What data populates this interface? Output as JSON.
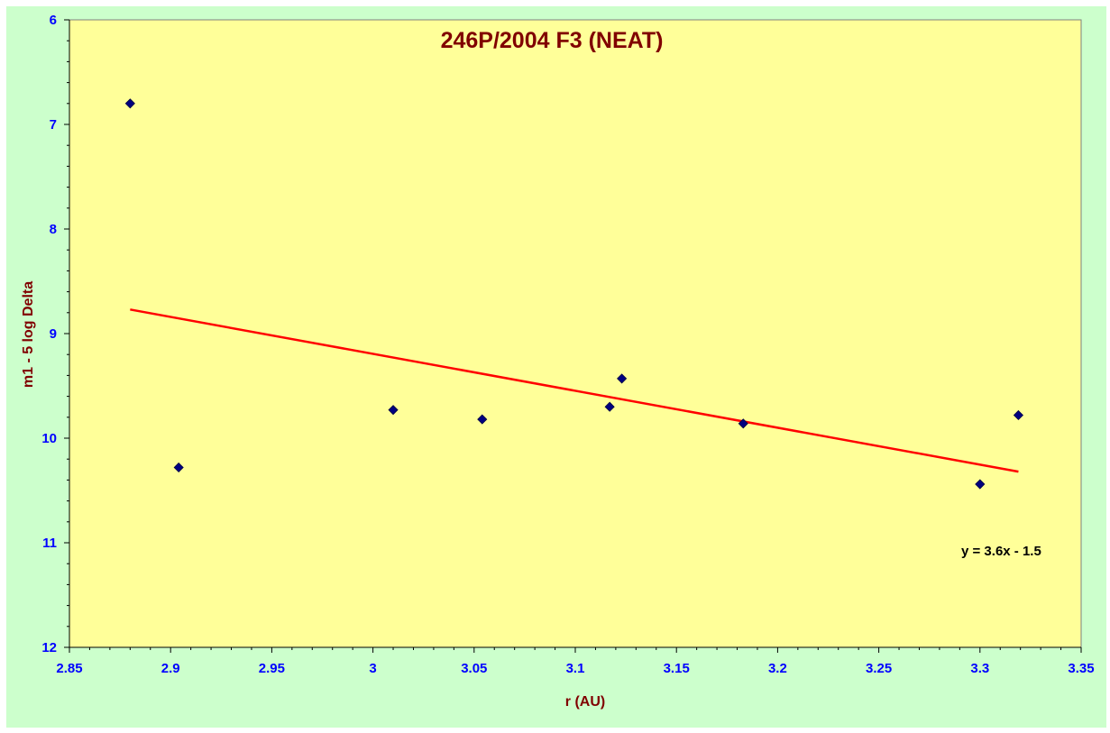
{
  "chart_data": {
    "type": "scatter",
    "title": "246P/2004 F3 (NEAT)",
    "xlabel": "r (AU)",
    "ylabel": "m1 - 5 log Delta",
    "xlim": [
      2.85,
      3.35
    ],
    "ylim": [
      6,
      12
    ],
    "y_axis_reversed": true,
    "x_ticks": [
      "2.85",
      "2.9",
      "2.95",
      "3",
      "3.05",
      "3.1",
      "3.15",
      "3.2",
      "3.25",
      "3.3",
      "3.35"
    ],
    "y_ticks": [
      "6",
      "7",
      "8",
      "9",
      "10",
      "11",
      "12"
    ],
    "grid": false,
    "series": [
      {
        "marker": "diamond",
        "x": [
          2.88,
          2.904,
          3.01,
          3.054,
          3.117,
          3.123,
          3.183,
          3.3,
          3.319
        ],
        "y": [
          6.8,
          10.28,
          9.73,
          9.82,
          9.7,
          9.43,
          9.86,
          10.44,
          9.78
        ]
      }
    ],
    "trendline": {
      "equation": "y = 3.6x - 1.5",
      "x": [
        2.88,
        3.319
      ],
      "y": [
        8.77,
        10.32
      ]
    },
    "colors": {
      "outer_background": "#ccffcc",
      "plot_background": "#ffff99",
      "marker": "#000080",
      "trendline": "#ff0000",
      "tick_labels": "#0000ff",
      "titles": "#800000"
    }
  }
}
